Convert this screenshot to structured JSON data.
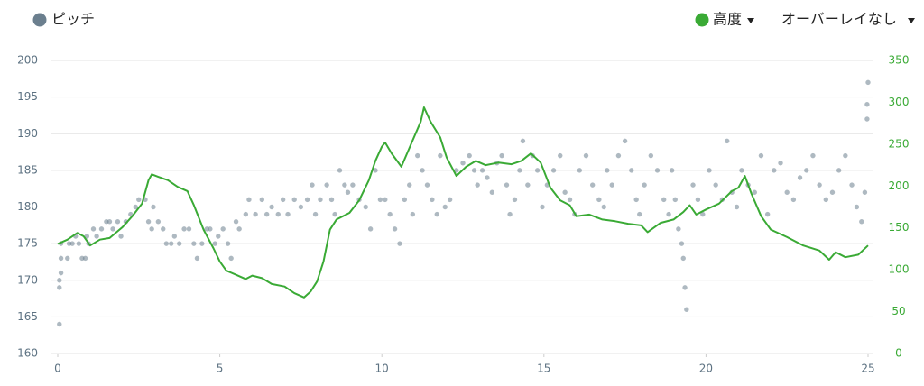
{
  "chart_data": {
    "type": "scatter",
    "series": [
      {
        "name": "ピッチ",
        "type": "scatter",
        "color": "#6b7f8e",
        "x": [
          0.05,
          0.05,
          0.05,
          0.1,
          0.1,
          0.1,
          0.3,
          0.35,
          0.45,
          0.55,
          0.65,
          0.75,
          0.85,
          0.9,
          0.95,
          1.1,
          1.2,
          1.35,
          1.5,
          1.6,
          1.7,
          1.85,
          1.95,
          2.1,
          2.25,
          2.4,
          2.5,
          2.7,
          2.8,
          2.9,
          2.95,
          3.1,
          3.25,
          3.35,
          3.5,
          3.6,
          3.75,
          3.9,
          4.05,
          4.2,
          4.3,
          4.45,
          4.6,
          4.7,
          4.85,
          4.95,
          5.1,
          5.25,
          5.35,
          5.5,
          5.6,
          5.8,
          5.9,
          6.1,
          6.3,
          6.45,
          6.6,
          6.8,
          6.95,
          7.1,
          7.3,
          7.5,
          7.7,
          7.85,
          7.95,
          8.1,
          8.3,
          8.45,
          8.55,
          8.7,
          8.85,
          8.95,
          9.1,
          9.3,
          9.5,
          9.65,
          9.8,
          9.95,
          10.1,
          10.25,
          10.4,
          10.55,
          10.7,
          10.85,
          10.95,
          11.1,
          11.25,
          11.4,
          11.55,
          11.7,
          11.8,
          11.95,
          12.1,
          12.3,
          12.5,
          12.7,
          12.85,
          12.95,
          13.1,
          13.25,
          13.4,
          13.55,
          13.7,
          13.85,
          13.95,
          14.1,
          14.25,
          14.35,
          14.5,
          14.65,
          14.8,
          14.95,
          15.1,
          15.3,
          15.5,
          15.65,
          15.8,
          15.95,
          16.1,
          16.3,
          16.5,
          16.7,
          16.85,
          16.95,
          17.1,
          17.3,
          17.5,
          17.7,
          17.85,
          17.95,
          18.1,
          18.3,
          18.5,
          18.7,
          18.85,
          18.95,
          19.05,
          19.15,
          19.25,
          19.3,
          19.35,
          19.4,
          19.6,
          19.75,
          19.9,
          20.1,
          20.3,
          20.5,
          20.65,
          20.8,
          20.95,
          21.1,
          21.3,
          21.5,
          21.7,
          21.9,
          22.1,
          22.3,
          22.5,
          22.7,
          22.9,
          23.1,
          23.3,
          23.5,
          23.7,
          23.9,
          24.1,
          24.3,
          24.5,
          24.65,
          24.8,
          24.9,
          24.97,
          24.97,
          25
        ],
        "values": [
          164,
          169,
          170,
          171,
          173,
          175,
          173,
          175,
          175,
          176,
          175,
          173,
          173,
          176,
          175,
          177,
          176,
          177,
          178,
          178,
          177,
          178,
          176,
          178,
          179,
          180,
          181,
          181,
          178,
          177,
          180,
          178,
          177,
          175,
          175,
          176,
          175,
          177,
          177,
          175,
          173,
          175,
          177,
          177,
          175,
          176,
          177,
          175,
          173,
          178,
          177,
          179,
          181,
          179,
          181,
          179,
          180,
          179,
          181,
          179,
          181,
          180,
          181,
          183,
          179,
          181,
          183,
          181,
          179,
          185,
          183,
          182,
          183,
          181,
          180,
          177,
          185,
          181,
          181,
          179,
          177,
          175,
          181,
          183,
          179,
          187,
          185,
          183,
          181,
          179,
          187,
          180,
          181,
          185,
          186,
          187,
          185,
          183,
          185,
          184,
          182,
          186,
          187,
          183,
          179,
          181,
          185,
          189,
          183,
          187,
          185,
          180,
          183,
          185,
          187,
          182,
          181,
          179,
          185,
          187,
          183,
          181,
          180,
          185,
          183,
          187,
          189,
          185,
          181,
          179,
          183,
          187,
          185,
          181,
          179,
          185,
          181,
          177,
          175,
          173,
          169,
          166,
          183,
          181,
          179,
          185,
          183,
          181,
          189,
          182,
          180,
          185,
          183,
          182,
          187,
          179,
          185,
          186,
          182,
          181,
          184,
          185,
          187,
          183,
          181,
          182,
          185,
          187,
          183,
          180,
          178,
          182,
          192,
          194,
          197
        ]
      },
      {
        "name": "高度",
        "type": "line",
        "axis": "y2",
        "color": "#3aaa35",
        "x": [
          0,
          0.3,
          0.6,
          0.8,
          1.0,
          1.3,
          1.6,
          2.0,
          2.3,
          2.6,
          2.8,
          2.9,
          3.1,
          3.4,
          3.7,
          4.0,
          4.2,
          4.5,
          4.8,
          5.0,
          5.2,
          5.5,
          5.8,
          6.0,
          6.3,
          6.6,
          7.0,
          7.3,
          7.6,
          7.8,
          8.0,
          8.2,
          8.4,
          8.6,
          8.8,
          9.0,
          9.3,
          9.6,
          9.8,
          10.0,
          10.1,
          10.3,
          10.6,
          10.9,
          11.2,
          11.3,
          11.5,
          11.8,
          12.0,
          12.3,
          12.6,
          12.9,
          13.2,
          13.6,
          14.0,
          14.3,
          14.6,
          14.9,
          15.2,
          15.5,
          15.8,
          16.0,
          16.4,
          16.8,
          17.2,
          17.6,
          18.0,
          18.2,
          18.6,
          19.0,
          19.3,
          19.5,
          19.7,
          20.0,
          20.4,
          20.8,
          21.0,
          21.2,
          21.4,
          21.7,
          22.0,
          22.5,
          23.0,
          23.5,
          23.8,
          24.0,
          24.3,
          24.7,
          25.0
        ],
        "values": [
          131,
          136,
          144,
          140,
          129,
          136,
          138,
          151,
          164,
          179,
          207,
          214,
          211,
          207,
          199,
          194,
          177,
          148,
          126,
          110,
          99,
          94,
          89,
          93,
          90,
          83,
          80,
          72,
          67,
          74,
          86,
          110,
          148,
          160,
          164,
          168,
          183,
          207,
          230,
          247,
          252,
          239,
          223,
          250,
          277,
          294,
          277,
          258,
          234,
          212,
          223,
          230,
          225,
          228,
          226,
          230,
          239,
          228,
          198,
          183,
          177,
          164,
          166,
          160,
          158,
          155,
          153,
          145,
          156,
          160,
          169,
          177,
          166,
          172,
          179,
          194,
          198,
          212,
          191,
          164,
          148,
          139,
          129,
          123,
          112,
          121,
          115,
          118,
          129
        ]
      }
    ],
    "xlim": [
      0,
      25
    ],
    "xticks": [
      0,
      5,
      10,
      15,
      20,
      25
    ],
    "ylim": [
      160,
      200
    ],
    "yticks": [
      160,
      165,
      170,
      175,
      180,
      185,
      190,
      195,
      200
    ],
    "y2lim": [
      0,
      350
    ],
    "y2ticks": [
      0,
      50,
      100,
      150,
      200,
      250,
      300,
      350
    ],
    "grid": true,
    "overlay_control": "オーバーレイなし"
  }
}
